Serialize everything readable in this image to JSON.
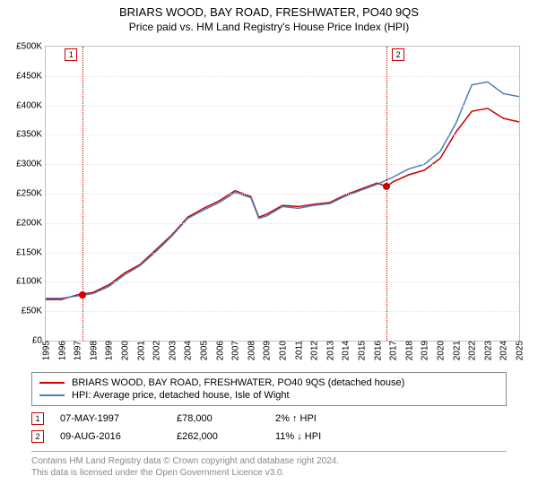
{
  "title": "BRIARS WOOD, BAY ROAD, FRESHWATER, PO40 9QS",
  "subtitle": "Price paid vs. HM Land Registry's House Price Index (HPI)",
  "chart": {
    "type": "line",
    "background_color": "#ffffff",
    "grid_color": "#e5e5e5",
    "border_color": "#c0c0c0",
    "x_years": [
      1995,
      1996,
      1997,
      1998,
      1999,
      2000,
      2001,
      2002,
      2003,
      2004,
      2005,
      2006,
      2007,
      2008,
      2009,
      2010,
      2011,
      2012,
      2013,
      2014,
      2015,
      2016,
      2017,
      2018,
      2019,
      2020,
      2021,
      2022,
      2023,
      2024,
      2025
    ],
    "xlim": [
      1995,
      2025
    ],
    "ylim": [
      0,
      500000
    ],
    "ytick_step": 50000,
    "ytick_prefix": "£",
    "ytick_labels": [
      "£0",
      "£50K",
      "£100K",
      "£150K",
      "£200K",
      "£250K",
      "£300K",
      "£350K",
      "£400K",
      "£450K",
      "£500K"
    ],
    "series": [
      {
        "name": "BRIARS WOOD, BAY ROAD, FRESHWATER, PO40 9QS (detached house)",
        "color": "#cc0000",
        "width": 1.5,
        "x": [
          1995,
          1996,
          1997,
          1998,
          1999,
          2000,
          2001,
          2002,
          2003,
          2004,
          2005,
          2006,
          2007,
          2008,
          2008.5,
          2009,
          2010,
          2011,
          2012,
          2013,
          2014,
          2015,
          2016,
          2016.6,
          2017,
          2018,
          2019,
          2020,
          2021,
          2022,
          2023,
          2024,
          2025
        ],
        "y": [
          70000,
          70000,
          78000,
          82000,
          95000,
          115000,
          130000,
          155000,
          180000,
          210000,
          225000,
          238000,
          255000,
          245000,
          210000,
          215000,
          230000,
          228000,
          232000,
          235000,
          248000,
          258000,
          268000,
          262000,
          270000,
          282000,
          290000,
          310000,
          355000,
          390000,
          395000,
          378000,
          372000
        ]
      },
      {
        "name": "HPI: Average price, detached house, Isle of Wight",
        "color": "#4a7fb5",
        "width": 1.5,
        "x": [
          1995,
          1996,
          1997,
          1998,
          1999,
          2000,
          2001,
          2002,
          2003,
          2004,
          2005,
          2006,
          2007,
          2008,
          2008.5,
          2009,
          2010,
          2011,
          2012,
          2013,
          2014,
          2015,
          2016,
          2017,
          2018,
          2019,
          2020,
          2021,
          2022,
          2023,
          2024,
          2025
        ],
        "y": [
          72000,
          72000,
          76000,
          80000,
          92000,
          112000,
          128000,
          152000,
          178000,
          208000,
          222000,
          235000,
          252000,
          243000,
          208000,
          212000,
          228000,
          225000,
          230000,
          233000,
          246000,
          256000,
          266000,
          278000,
          292000,
          300000,
          322000,
          370000,
          435000,
          440000,
          420000,
          415000
        ]
      }
    ],
    "markers": [
      {
        "index": "1",
        "x": 1997.35,
        "box_side": "left"
      },
      {
        "index": "2",
        "x": 2016.6,
        "box_side": "right"
      }
    ],
    "sale_points": [
      {
        "x": 1997.35,
        "y": 78000
      },
      {
        "x": 2016.6,
        "y": 262000
      }
    ]
  },
  "legend": {
    "items": [
      {
        "color": "#cc0000",
        "label": "BRIARS WOOD, BAY ROAD, FRESHWATER, PO40 9QS (detached house)"
      },
      {
        "color": "#4a7fb5",
        "label": "HPI: Average price, detached house, Isle of Wight"
      }
    ]
  },
  "events": [
    {
      "index": "1",
      "date": "07-MAY-1997",
      "price": "£78,000",
      "delta": "2% ↑ HPI"
    },
    {
      "index": "2",
      "date": "09-AUG-2016",
      "price": "£262,000",
      "delta": "11% ↓ HPI"
    }
  ],
  "footer": {
    "line1": "Contains HM Land Registry data © Crown copyright and database right 2024.",
    "line2": "This data is licensed under the Open Government Licence v3.0."
  }
}
